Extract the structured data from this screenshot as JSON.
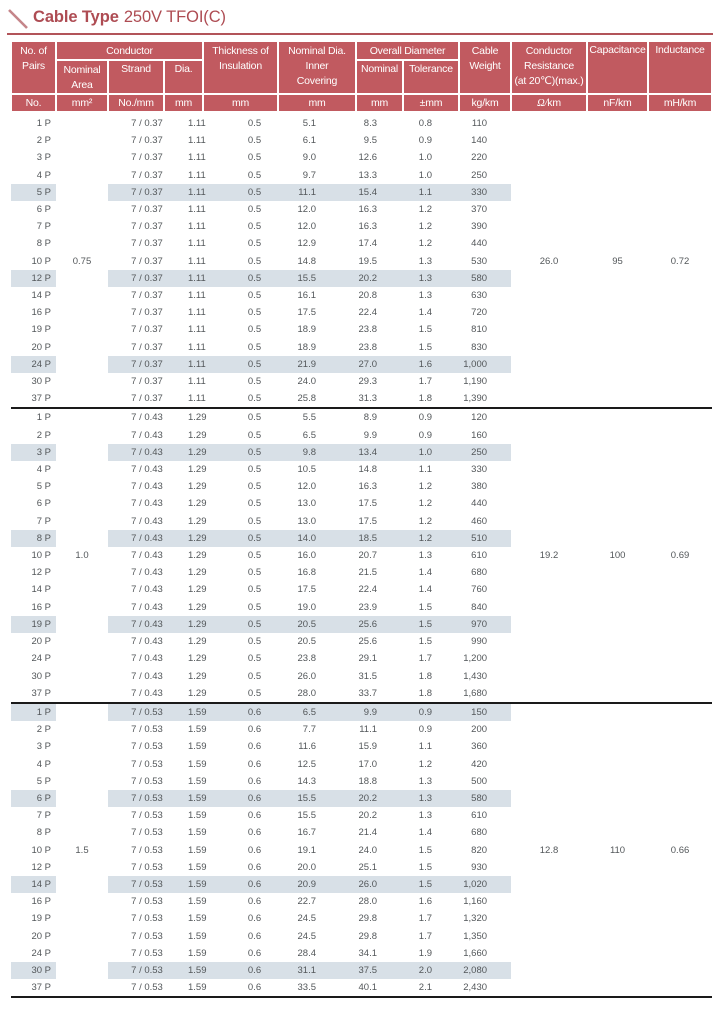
{
  "title": {
    "prefix": "Cable Type",
    "suffix": "250V TFOI(C)"
  },
  "colors": {
    "header_bg": "#c15a60",
    "title_text": "#ae4c53",
    "rule": "#b25459",
    "row_highlight": "#d8e0e7",
    "body_text": "#53575a",
    "separator": "#1a1a1a"
  },
  "header": {
    "pairs": "No. of\nPairs",
    "conductor": "Conductor",
    "nominal_area": "Nominal\nArea",
    "strand": "Strand",
    "dia": "Dia.",
    "thickness": "Thickness of\nInsulation",
    "inner_covering": "Nominal Dia.\nInner\nCovering",
    "overall_diameter": "Overall Diameter",
    "overall_nominal": "Nominal",
    "overall_tolerance": "Tolerance",
    "cable_weight": "Cable\nWeight",
    "resistance": "Conductor\nResistance\n(at 20℃)(max.)",
    "capacitance": "Capacitance",
    "inductance": "Inductance",
    "units": [
      "No.",
      "mm²",
      "No./mm",
      "mm",
      "mm",
      "mm",
      "mm",
      "±mm",
      "kg/km",
      "Ω/km",
      "nF/km",
      "mH/km"
    ]
  },
  "row_columns": [
    "pairs",
    "inner_covering_dia",
    "overall_dia_nominal",
    "overall_dia_tolerance",
    "cable_weight",
    "highlighted"
  ],
  "groups": [
    {
      "nominal_area": "0.75",
      "strand": "7 / 0.37",
      "dia": "1.11",
      "insulation_thickness": "0.5",
      "resistance": "26.0",
      "capacitance": "95",
      "inductance": "0.72",
      "rows": [
        [
          "1 P",
          "5.1",
          "8.3",
          "0.8",
          "110",
          false
        ],
        [
          "2 P",
          "6.1",
          "9.5",
          "0.9",
          "140",
          false
        ],
        [
          "3 P",
          "9.0",
          "12.6",
          "1.0",
          "220",
          false
        ],
        [
          "4 P",
          "9.7",
          "13.3",
          "1.0",
          "250",
          false
        ],
        [
          "5 P",
          "11.1",
          "15.4",
          "1.1",
          "330",
          true
        ],
        [
          "6 P",
          "12.0",
          "16.3",
          "1.2",
          "370",
          false
        ],
        [
          "7 P",
          "12.0",
          "16.3",
          "1.2",
          "390",
          false
        ],
        [
          "8 P",
          "12.9",
          "17.4",
          "1.2",
          "440",
          false
        ],
        [
          "10 P",
          "14.8",
          "19.5",
          "1.3",
          "530",
          false
        ],
        [
          "12 P",
          "15.5",
          "20.2",
          "1.3",
          "580",
          true
        ],
        [
          "14 P",
          "16.1",
          "20.8",
          "1.3",
          "630",
          false
        ],
        [
          "16 P",
          "17.5",
          "22.4",
          "1.4",
          "720",
          false
        ],
        [
          "19 P",
          "18.9",
          "23.8",
          "1.5",
          "810",
          false
        ],
        [
          "20 P",
          "18.9",
          "23.8",
          "1.5",
          "830",
          false
        ],
        [
          "24 P",
          "21.9",
          "27.0",
          "1.6",
          "1,000",
          true
        ],
        [
          "30 P",
          "24.0",
          "29.3",
          "1.7",
          "1,190",
          false
        ],
        [
          "37 P",
          "25.8",
          "31.3",
          "1.8",
          "1,390",
          false
        ]
      ]
    },
    {
      "nominal_area": "1.0",
      "strand": "7 / 0.43",
      "dia": "1.29",
      "insulation_thickness": "0.5",
      "resistance": "19.2",
      "capacitance": "100",
      "inductance": "0.69",
      "rows": [
        [
          "1 P",
          "5.5",
          "8.9",
          "0.9",
          "120",
          false
        ],
        [
          "2 P",
          "6.5",
          "9.9",
          "0.9",
          "160",
          false
        ],
        [
          "3 P",
          "9.8",
          "13.4",
          "1.0",
          "250",
          true
        ],
        [
          "4 P",
          "10.5",
          "14.8",
          "1.1",
          "330",
          false
        ],
        [
          "5 P",
          "12.0",
          "16.3",
          "1.2",
          "380",
          false
        ],
        [
          "6 P",
          "13.0",
          "17.5",
          "1.2",
          "440",
          false
        ],
        [
          "7 P",
          "13.0",
          "17.5",
          "1.2",
          "460",
          false
        ],
        [
          "8 P",
          "14.0",
          "18.5",
          "1.2",
          "510",
          true
        ],
        [
          "10 P",
          "16.0",
          "20.7",
          "1.3",
          "610",
          false
        ],
        [
          "12 P",
          "16.8",
          "21.5",
          "1.4",
          "680",
          false
        ],
        [
          "14 P",
          "17.5",
          "22.4",
          "1.4",
          "760",
          false
        ],
        [
          "16 P",
          "19.0",
          "23.9",
          "1.5",
          "840",
          false
        ],
        [
          "19 P",
          "20.5",
          "25.6",
          "1.5",
          "970",
          true
        ],
        [
          "20 P",
          "20.5",
          "25.6",
          "1.5",
          "990",
          false
        ],
        [
          "24 P",
          "23.8",
          "29.1",
          "1.7",
          "1,200",
          false
        ],
        [
          "30 P",
          "26.0",
          "31.5",
          "1.8",
          "1,430",
          false
        ],
        [
          "37 P",
          "28.0",
          "33.7",
          "1.8",
          "1,680",
          false
        ]
      ]
    },
    {
      "nominal_area": "1.5",
      "strand": "7 / 0.53",
      "dia": "1.59",
      "insulation_thickness": "0.6",
      "resistance": "12.8",
      "capacitance": "110",
      "inductance": "0.66",
      "rows": [
        [
          "1 P",
          "6.5",
          "9.9",
          "0.9",
          "150",
          true
        ],
        [
          "2 P",
          "7.7",
          "11.1",
          "0.9",
          "200",
          false
        ],
        [
          "3 P",
          "11.6",
          "15.9",
          "1.1",
          "360",
          false
        ],
        [
          "4 P",
          "12.5",
          "17.0",
          "1.2",
          "420",
          false
        ],
        [
          "5 P",
          "14.3",
          "18.8",
          "1.3",
          "500",
          false
        ],
        [
          "6 P",
          "15.5",
          "20.2",
          "1.3",
          "580",
          true
        ],
        [
          "7 P",
          "15.5",
          "20.2",
          "1.3",
          "610",
          false
        ],
        [
          "8 P",
          "16.7",
          "21.4",
          "1.4",
          "680",
          false
        ],
        [
          "10 P",
          "19.1",
          "24.0",
          "1.5",
          "820",
          false
        ],
        [
          "12 P",
          "20.0",
          "25.1",
          "1.5",
          "930",
          false
        ],
        [
          "14 P",
          "20.9",
          "26.0",
          "1.5",
          "1,020",
          true
        ],
        [
          "16 P",
          "22.7",
          "28.0",
          "1.6",
          "1,160",
          false
        ],
        [
          "19 P",
          "24.5",
          "29.8",
          "1.7",
          "1,320",
          false
        ],
        [
          "20 P",
          "24.5",
          "29.8",
          "1.7",
          "1,350",
          false
        ],
        [
          "24 P",
          "28.4",
          "34.1",
          "1.9",
          "1,660",
          false
        ],
        [
          "30 P",
          "31.1",
          "37.5",
          "2.0",
          "2,080",
          true
        ],
        [
          "37 P",
          "33.5",
          "40.1",
          "2.1",
          "2,430",
          false
        ]
      ]
    }
  ]
}
